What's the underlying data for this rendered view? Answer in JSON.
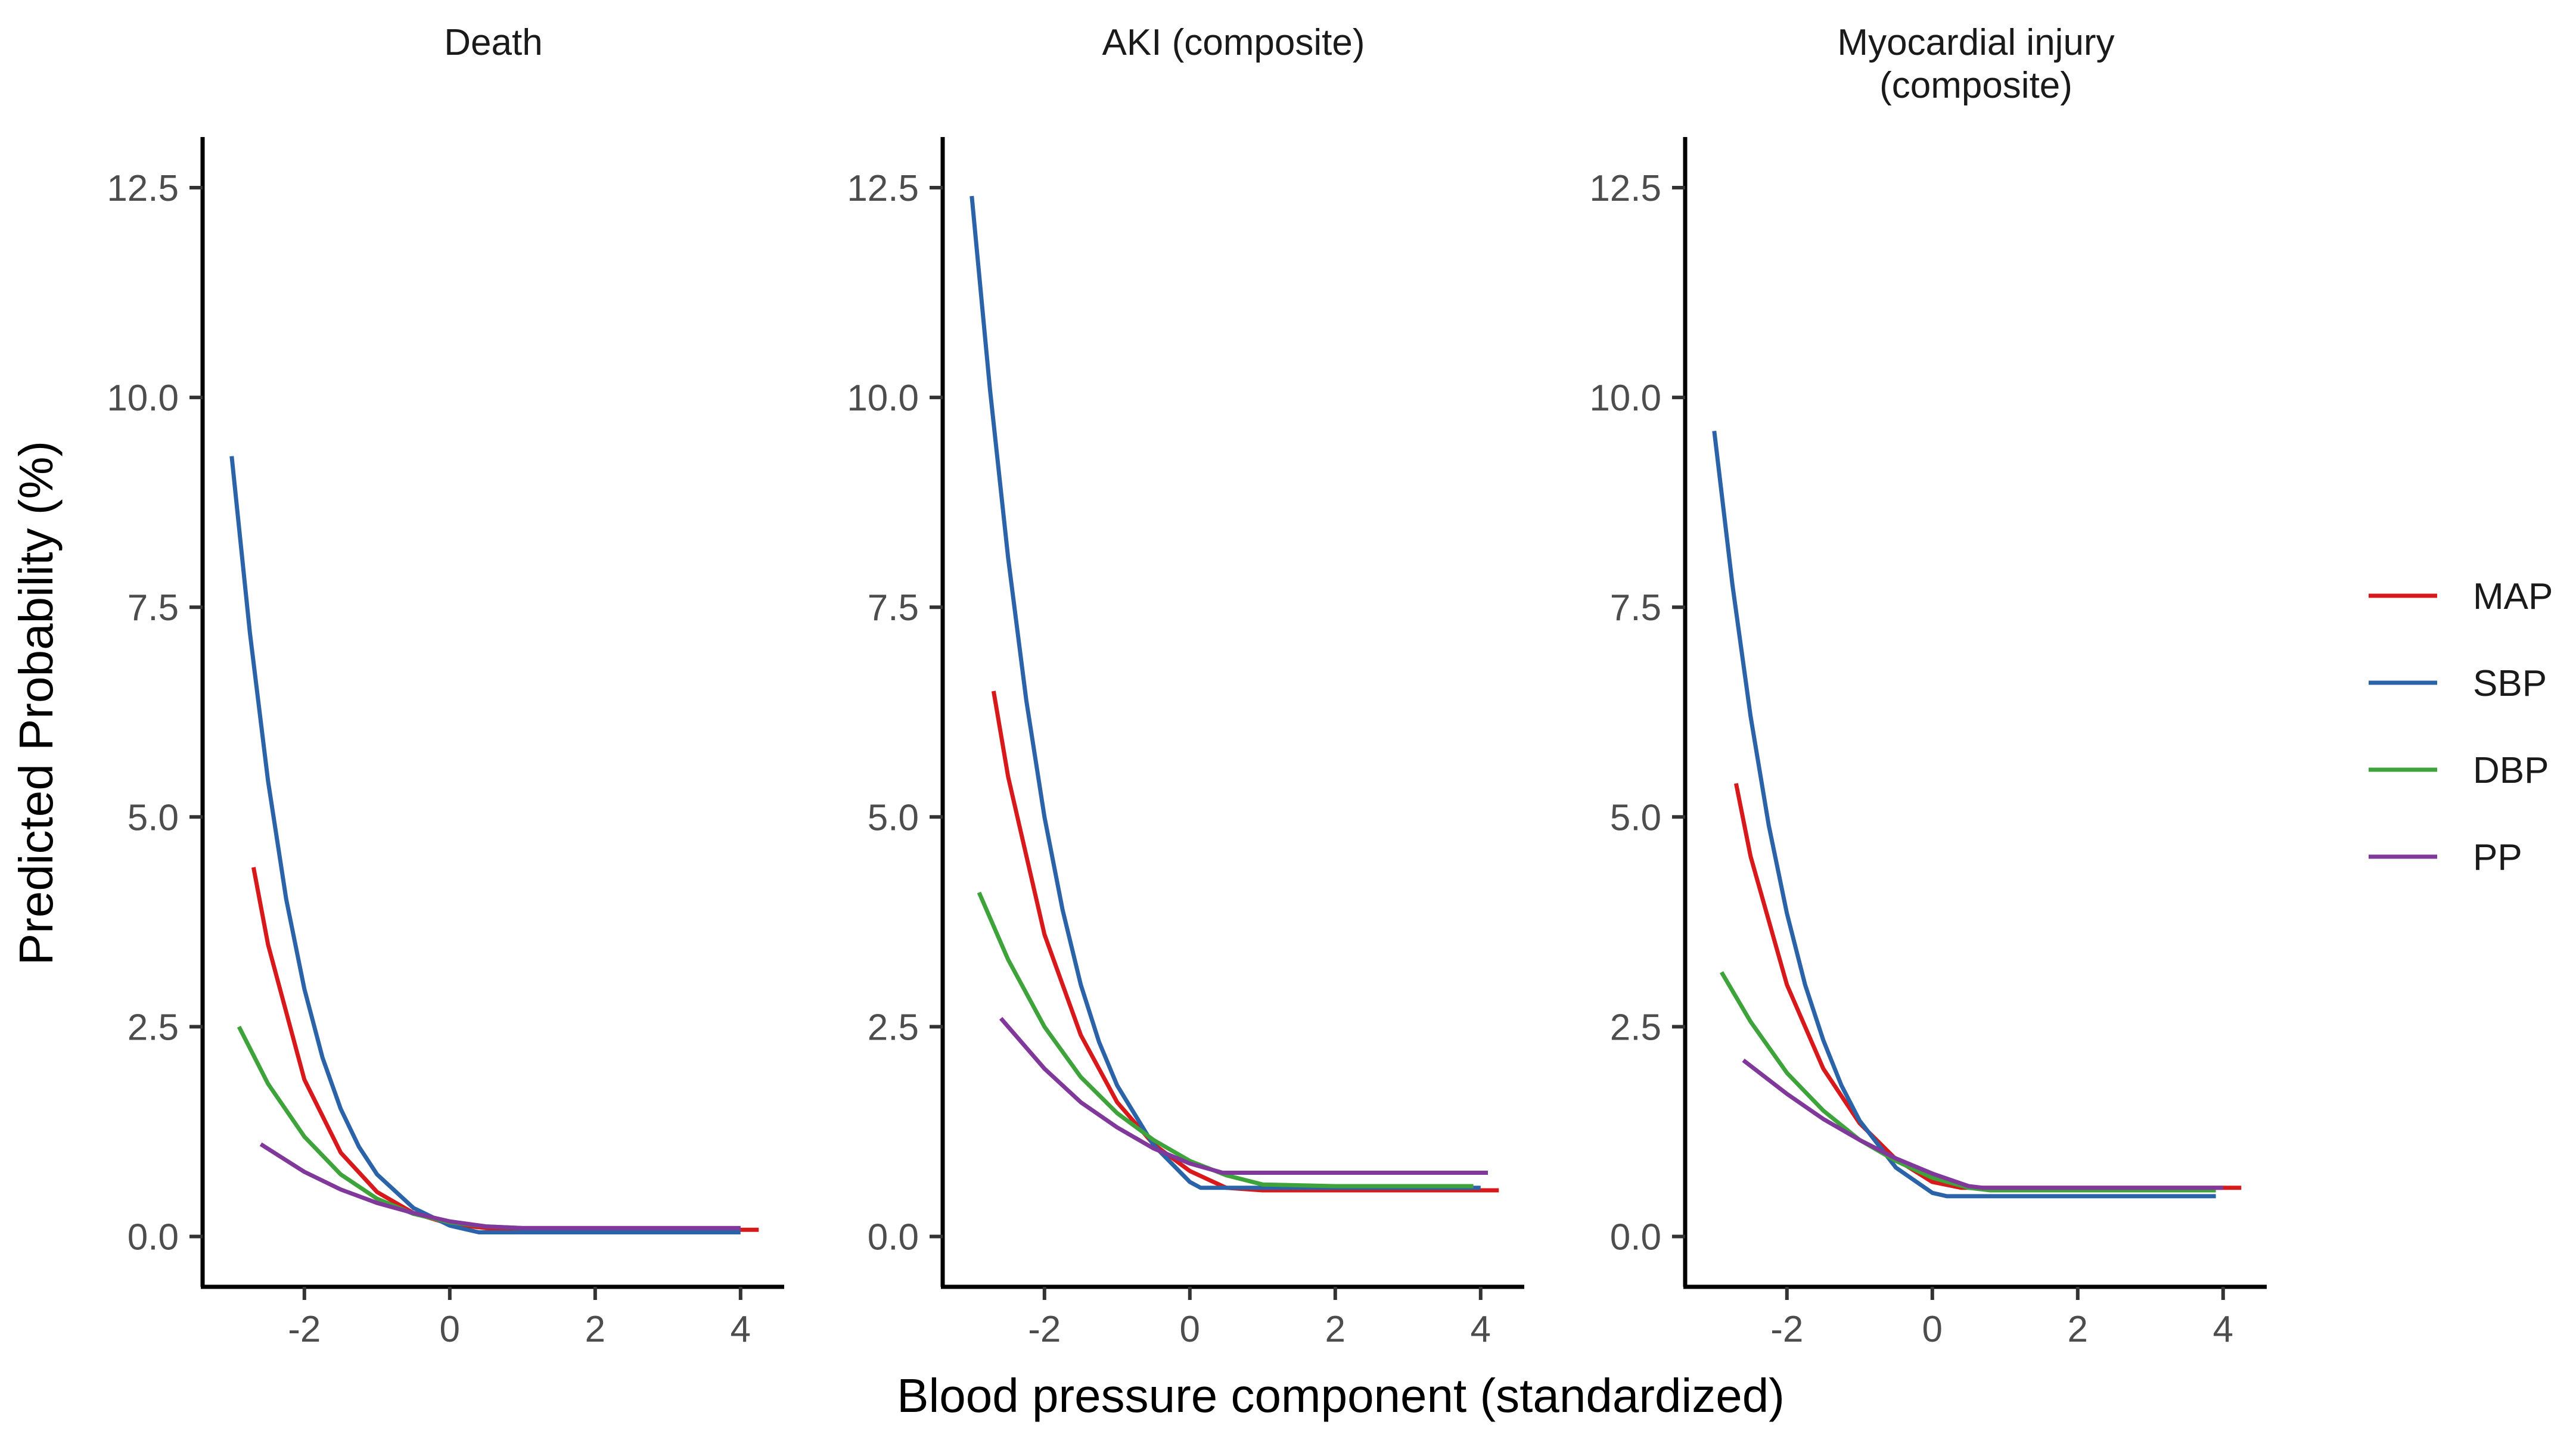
{
  "chart_data": {
    "type": "line",
    "xlabel": "Blood pressure component (standardized)",
    "ylabel": "Predicted Probability (%)",
    "xlim": [
      -3.4,
      4.6
    ],
    "ylim": [
      -0.6,
      12.5
    ],
    "x_ticks": [
      -2,
      0,
      2,
      4
    ],
    "y_ticks": [
      0.0,
      2.5,
      5.0,
      7.5,
      10.0,
      12.5
    ],
    "x_tick_labels": [
      "-2",
      "0",
      "2",
      "4"
    ],
    "y_tick_labels": [
      "0.0",
      "2.5",
      "5.0",
      "7.5",
      "10.0",
      "12.5"
    ],
    "grid": false,
    "legend_position": "right",
    "legend": [
      {
        "name": "MAP",
        "color": "#d7191c"
      },
      {
        "name": "SBP",
        "color": "#2b63a8"
      },
      {
        "name": "DBP",
        "color": "#3fa33b"
      },
      {
        "name": "PP",
        "color": "#80389a"
      }
    ],
    "panels": [
      {
        "title": [
          "Death"
        ],
        "series": [
          {
            "name": "MAP",
            "points": [
              [
                -2.7,
                4.4
              ],
              [
                -2.5,
                3.48
              ],
              [
                -2.0,
                1.87
              ],
              [
                -1.5,
                1.0
              ],
              [
                -1.0,
                0.53
              ],
              [
                -0.5,
                0.28
              ],
              [
                0.0,
                0.15
              ],
              [
                0.5,
                0.1
              ],
              [
                1.0,
                0.08
              ],
              [
                2.0,
                0.08
              ],
              [
                3.0,
                0.08
              ],
              [
                4.25,
                0.08
              ]
            ]
          },
          {
            "name": "SBP",
            "points": [
              [
                -3.0,
                9.3
              ],
              [
                -2.75,
                7.2
              ],
              [
                -2.5,
                5.43
              ],
              [
                -2.25,
                4.02
              ],
              [
                -2.0,
                2.95
              ],
              [
                -1.75,
                2.13
              ],
              [
                -1.5,
                1.52
              ],
              [
                -1.25,
                1.07
              ],
              [
                -1.0,
                0.74
              ],
              [
                -0.5,
                0.34
              ],
              [
                0.0,
                0.13
              ],
              [
                0.4,
                0.05
              ],
              [
                1.0,
                0.05
              ],
              [
                2.0,
                0.05
              ],
              [
                3.0,
                0.05
              ],
              [
                4.0,
                0.05
              ]
            ]
          },
          {
            "name": "DBP",
            "points": [
              [
                -2.9,
                2.5
              ],
              [
                -2.5,
                1.82
              ],
              [
                -2.0,
                1.19
              ],
              [
                -1.5,
                0.74
              ],
              [
                -1.0,
                0.45
              ],
              [
                -0.5,
                0.27
              ],
              [
                0.0,
                0.17
              ],
              [
                0.5,
                0.12
              ],
              [
                1.0,
                0.1
              ],
              [
                2.0,
                0.1
              ],
              [
                3.0,
                0.1
              ],
              [
                4.0,
                0.1
              ]
            ]
          },
          {
            "name": "PP",
            "points": [
              [
                -2.6,
                1.1
              ],
              [
                -2.0,
                0.77
              ],
              [
                -1.5,
                0.56
              ],
              [
                -1.0,
                0.4
              ],
              [
                -0.5,
                0.28
              ],
              [
                0.0,
                0.18
              ],
              [
                0.5,
                0.12
              ],
              [
                1.0,
                0.1
              ],
              [
                2.0,
                0.1
              ],
              [
                3.0,
                0.1
              ],
              [
                4.0,
                0.1
              ]
            ]
          }
        ]
      },
      {
        "title": [
          "AKI (composite)"
        ],
        "series": [
          {
            "name": "MAP",
            "points": [
              [
                -2.7,
                6.5
              ],
              [
                -2.5,
                5.48
              ],
              [
                -2.0,
                3.6
              ],
              [
                -1.5,
                2.4
              ],
              [
                -1.0,
                1.6
              ],
              [
                -0.5,
                1.1
              ],
              [
                0.0,
                0.78
              ],
              [
                0.5,
                0.58
              ],
              [
                1.0,
                0.55
              ],
              [
                2.0,
                0.55
              ],
              [
                3.0,
                0.55
              ],
              [
                4.0,
                0.55
              ],
              [
                4.25,
                0.55
              ]
            ]
          },
          {
            "name": "SBP",
            "points": [
              [
                -3.0,
                12.4
              ],
              [
                -2.75,
                10.1
              ],
              [
                -2.5,
                8.09
              ],
              [
                -2.25,
                6.39
              ],
              [
                -2.0,
                5.0
              ],
              [
                -1.75,
                3.89
              ],
              [
                -1.5,
                3.0
              ],
              [
                -1.25,
                2.32
              ],
              [
                -1.0,
                1.8
              ],
              [
                -0.5,
                1.09
              ],
              [
                0.0,
                0.65
              ],
              [
                0.15,
                0.58
              ],
              [
                1.0,
                0.58
              ],
              [
                2.0,
                0.58
              ],
              [
                3.0,
                0.58
              ],
              [
                4.0,
                0.58
              ]
            ]
          },
          {
            "name": "DBP",
            "points": [
              [
                -2.9,
                4.1
              ],
              [
                -2.5,
                3.3
              ],
              [
                -2.0,
                2.5
              ],
              [
                -1.5,
                1.9
              ],
              [
                -1.0,
                1.47
              ],
              [
                -0.5,
                1.15
              ],
              [
                0.0,
                0.9
              ],
              [
                0.5,
                0.73
              ],
              [
                1.0,
                0.62
              ],
              [
                2.0,
                0.6
              ],
              [
                3.0,
                0.6
              ],
              [
                3.9,
                0.6
              ]
            ]
          },
          {
            "name": "PP",
            "points": [
              [
                -2.6,
                2.6
              ],
              [
                -2.0,
                2.0
              ],
              [
                -1.5,
                1.6
              ],
              [
                -1.0,
                1.3
              ],
              [
                -0.5,
                1.05
              ],
              [
                0.0,
                0.87
              ],
              [
                0.45,
                0.76
              ],
              [
                1.0,
                0.76
              ],
              [
                2.0,
                0.76
              ],
              [
                3.0,
                0.76
              ],
              [
                4.1,
                0.76
              ]
            ]
          }
        ]
      },
      {
        "title": [
          "Myocardial injury",
          "(composite)"
        ],
        "series": [
          {
            "name": "MAP",
            "points": [
              [
                -2.7,
                5.4
              ],
              [
                -2.5,
                4.53
              ],
              [
                -2.0,
                3.0
              ],
              [
                -1.5,
                2.0
              ],
              [
                -1.0,
                1.35
              ],
              [
                -0.5,
                0.92
              ],
              [
                0.0,
                0.65
              ],
              [
                0.4,
                0.58
              ],
              [
                1.0,
                0.58
              ],
              [
                2.0,
                0.58
              ],
              [
                3.0,
                0.58
              ],
              [
                4.25,
                0.58
              ]
            ]
          },
          {
            "name": "SBP",
            "points": [
              [
                -3.0,
                9.6
              ],
              [
                -2.75,
                7.77
              ],
              [
                -2.5,
                6.2
              ],
              [
                -2.25,
                4.9
              ],
              [
                -2.0,
                3.85
              ],
              [
                -1.75,
                3.0
              ],
              [
                -1.5,
                2.34
              ],
              [
                -1.25,
                1.8
              ],
              [
                -1.0,
                1.38
              ],
              [
                -0.5,
                0.82
              ],
              [
                0.0,
                0.52
              ],
              [
                0.2,
                0.48
              ],
              [
                1.0,
                0.48
              ],
              [
                2.0,
                0.48
              ],
              [
                3.0,
                0.48
              ],
              [
                3.9,
                0.48
              ]
            ]
          },
          {
            "name": "DBP",
            "points": [
              [
                -2.9,
                3.15
              ],
              [
                -2.5,
                2.56
              ],
              [
                -2.0,
                1.95
              ],
              [
                -1.5,
                1.5
              ],
              [
                -1.0,
                1.15
              ],
              [
                -0.5,
                0.9
              ],
              [
                0.0,
                0.7
              ],
              [
                0.5,
                0.58
              ],
              [
                0.8,
                0.55
              ],
              [
                2.0,
                0.55
              ],
              [
                3.0,
                0.55
              ],
              [
                3.9,
                0.55
              ]
            ]
          },
          {
            "name": "PP",
            "points": [
              [
                -2.6,
                2.1
              ],
              [
                -2.0,
                1.7
              ],
              [
                -1.5,
                1.4
              ],
              [
                -1.0,
                1.15
              ],
              [
                -0.5,
                0.93
              ],
              [
                0.0,
                0.75
              ],
              [
                0.5,
                0.6
              ],
              [
                0.7,
                0.58
              ],
              [
                2.0,
                0.58
              ],
              [
                3.0,
                0.58
              ],
              [
                4.0,
                0.58
              ]
            ]
          }
        ]
      }
    ]
  }
}
